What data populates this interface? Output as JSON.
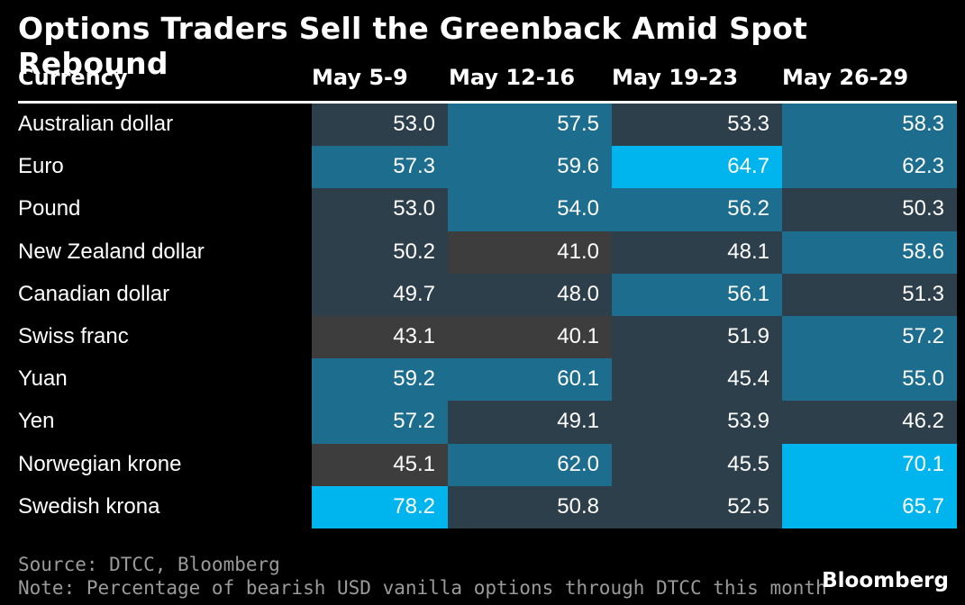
{
  "chart_data": {
    "type": "table",
    "title": "Options Traders Sell the Greenback Amid Spot Rebound",
    "row_header": "Currency",
    "columns": [
      "May 5-9",
      "May 12-16",
      "May 19-23",
      "May 26-29"
    ],
    "rows": [
      {
        "label": "Australian dollar",
        "values": [
          "53.0",
          "57.5",
          "53.3",
          "58.3"
        ]
      },
      {
        "label": "Euro",
        "values": [
          "57.3",
          "59.6",
          "64.7",
          "62.3"
        ]
      },
      {
        "label": "Pound",
        "values": [
          "53.0",
          "54.0",
          "56.2",
          "50.3"
        ]
      },
      {
        "label": "New Zealand dollar",
        "values": [
          "50.2",
          "41.0",
          "48.1",
          "58.6"
        ]
      },
      {
        "label": "Canadian dollar",
        "values": [
          "49.7",
          "48.0",
          "56.1",
          "51.3"
        ]
      },
      {
        "label": "Swiss franc",
        "values": [
          "43.1",
          "40.1",
          "51.9",
          "57.2"
        ]
      },
      {
        "label": "Yuan",
        "values": [
          "59.2",
          "60.1",
          "45.4",
          "55.0"
        ]
      },
      {
        "label": "Yen",
        "values": [
          "57.2",
          "49.1",
          "53.9",
          "46.2"
        ]
      },
      {
        "label": "Norwegian krone",
        "values": [
          "45.1",
          "62.0",
          "45.5",
          "70.1"
        ]
      },
      {
        "label": "Swedish krona",
        "values": [
          "78.2",
          "50.8",
          "52.5",
          "65.7"
        ]
      }
    ],
    "colors": {
      "low": "#3d3d3d",
      "mid_low": "#2c3f4a",
      "mid": "#1c6d8e",
      "high": "#00b4ee"
    }
  },
  "footer": {
    "source": "Source: DTCC, Bloomberg",
    "note": "Note: Percentage of bearish USD vanilla options through DTCC this month",
    "brand": "Bloomberg"
  }
}
